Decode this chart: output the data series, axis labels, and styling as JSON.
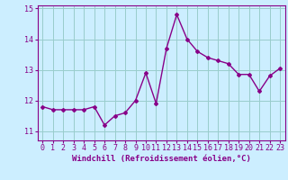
{
  "x": [
    0,
    1,
    2,
    3,
    4,
    5,
    6,
    7,
    8,
    9,
    10,
    11,
    12,
    13,
    14,
    15,
    16,
    17,
    18,
    19,
    20,
    21,
    22,
    23
  ],
  "y": [
    11.8,
    11.7,
    11.7,
    11.7,
    11.7,
    11.8,
    11.2,
    11.5,
    11.6,
    12.0,
    12.9,
    11.9,
    13.7,
    14.8,
    14.0,
    13.6,
    13.4,
    13.3,
    13.2,
    12.85,
    12.85,
    12.3,
    12.8,
    13.05
  ],
  "ylim": [
    10.7,
    15.1
  ],
  "yticks": [
    11,
    12,
    13,
    14,
    15
  ],
  "xticks": [
    0,
    1,
    2,
    3,
    4,
    5,
    6,
    7,
    8,
    9,
    10,
    11,
    12,
    13,
    14,
    15,
    16,
    17,
    18,
    19,
    20,
    21,
    22,
    23
  ],
  "xlabel": "Windchill (Refroidissement éolien,°C)",
  "line_color": "#880088",
  "marker": "D",
  "marker_size": 2.0,
  "bg_color": "#cceeff",
  "grid_color": "#99cccc",
  "xlabel_fontsize": 6.5,
  "tick_fontsize": 6.0,
  "line_width": 1.0
}
